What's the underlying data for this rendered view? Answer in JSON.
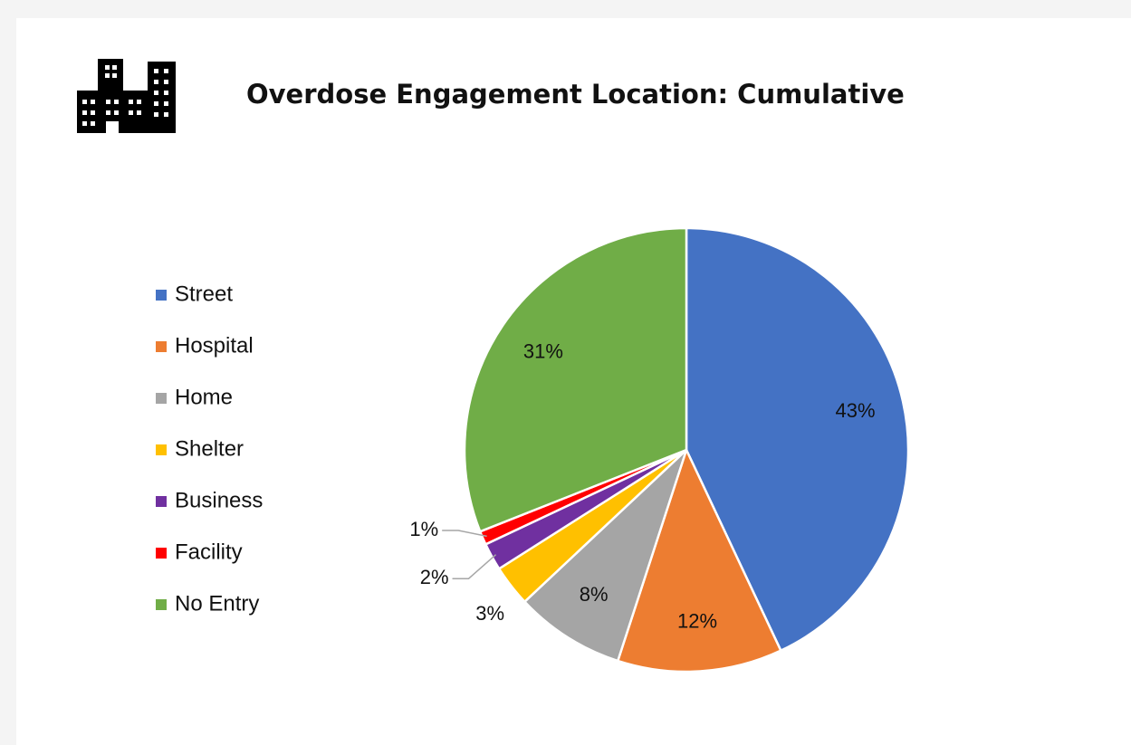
{
  "chart_data": {
    "type": "pie",
    "title": "Overdose Engagement Location: Cumulative",
    "categories": [
      "Street",
      "Hospital",
      "Home",
      "Shelter",
      "Business",
      "Facility",
      "No Entry"
    ],
    "values": [
      43,
      12,
      8,
      3,
      2,
      1,
      31
    ],
    "value_labels": [
      "43%",
      "12%",
      "8%",
      "3%",
      "2%",
      "1%",
      "31%"
    ],
    "colors": [
      "#4472c4",
      "#ed7d31",
      "#a5a5a5",
      "#ffc000",
      "#7030a0",
      "#ff0000",
      "#70ad47"
    ],
    "legend": "left"
  }
}
